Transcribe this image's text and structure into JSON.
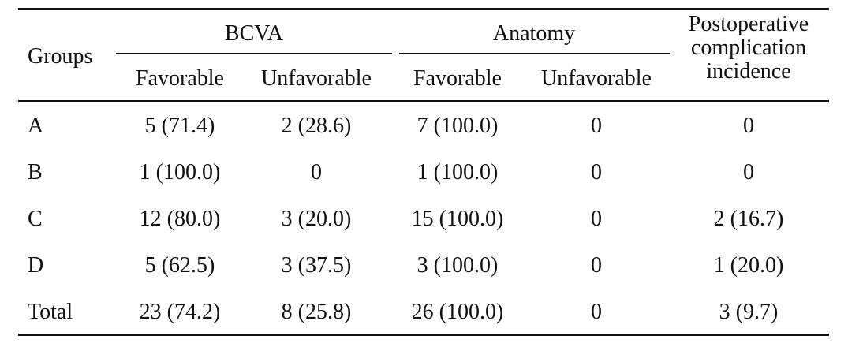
{
  "table": {
    "header": {
      "groups": "Groups",
      "bcva": "BCVA",
      "anatomy": "Anatomy",
      "complication": [
        "Postoperative",
        "complication",
        "incidence"
      ],
      "favorable": "Favorable",
      "unfavorable": "Unfavorable"
    },
    "rows": [
      [
        "A",
        "5 (71.4)",
        "2 (28.6)",
        "7 (100.0)",
        "0",
        "0"
      ],
      [
        "B",
        "1 (100.0)",
        "0",
        "1 (100.0)",
        "0",
        "0"
      ],
      [
        "C",
        "12 (80.0)",
        "3 (20.0)",
        "15 (100.0)",
        "0",
        "2 (16.7)"
      ],
      [
        "D",
        "5 (62.5)",
        "3 (37.5)",
        "3 (100.0)",
        "0",
        "1 (20.0)"
      ],
      [
        "Total",
        "23 (74.2)",
        "8 (25.8)",
        "26 (100.0)",
        "0",
        "3 (9.7)"
      ]
    ]
  }
}
